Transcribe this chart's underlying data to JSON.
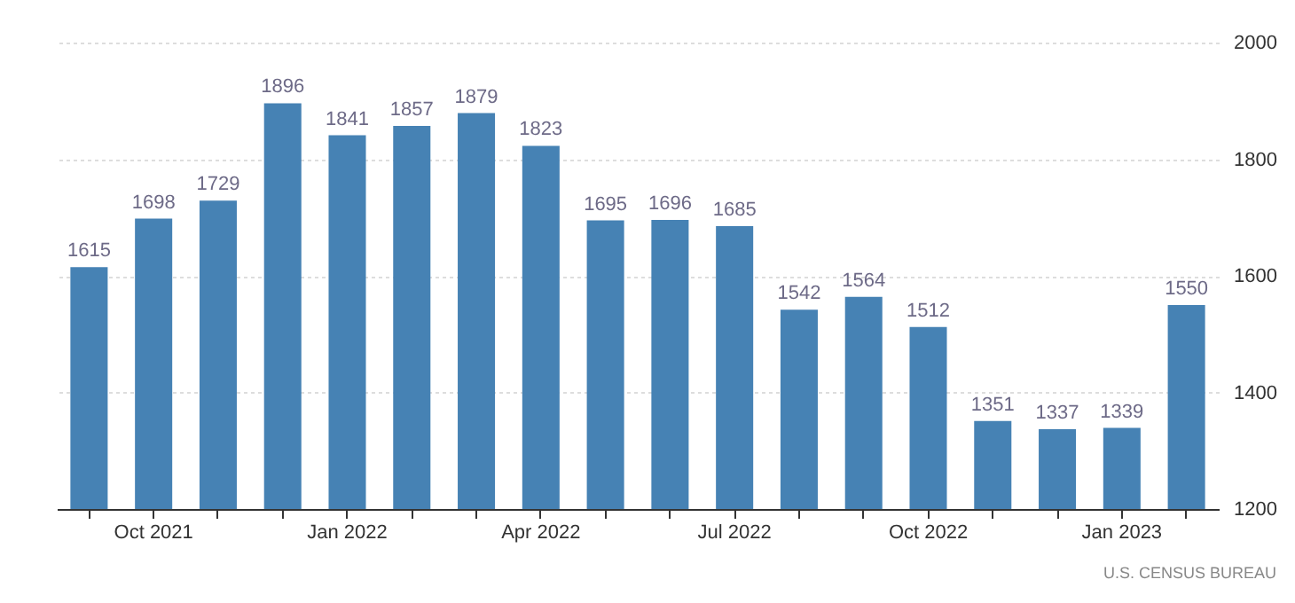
{
  "chart_data": {
    "type": "bar",
    "categories": [
      null,
      "Oct 2021",
      null,
      null,
      "Jan 2022",
      null,
      null,
      "Apr 2022",
      null,
      null,
      "Jul 2022",
      null,
      null,
      "Oct 2022",
      null,
      null,
      "Jan 2023",
      null
    ],
    "values": [
      1615,
      1698,
      1729,
      1896,
      1841,
      1857,
      1879,
      1823,
      1695,
      1696,
      1685,
      1542,
      1564,
      1512,
      1351,
      1337,
      1339,
      1550
    ],
    "color": "#4682b4",
    "ylim": [
      1200,
      2000
    ],
    "yticks": [
      1200,
      1400,
      1600,
      1800,
      2000
    ],
    "grid": "y",
    "data_labels": true,
    "annotations": [
      "U.S. CENSUS BUREAU"
    ]
  }
}
